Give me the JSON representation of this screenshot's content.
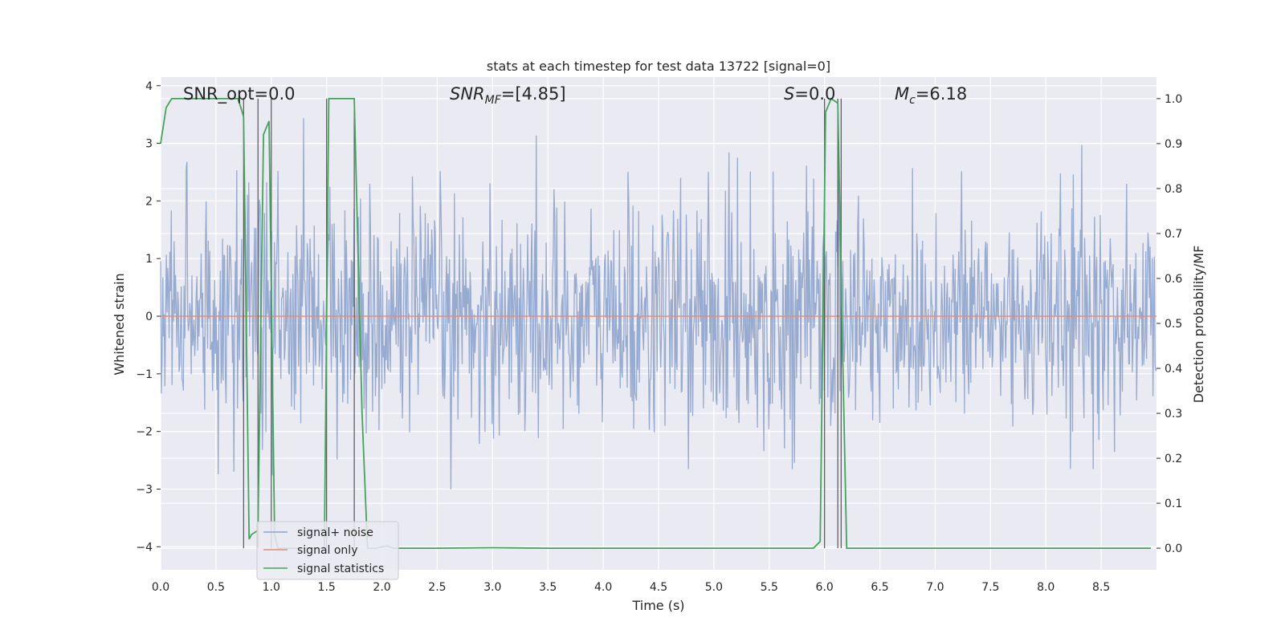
{
  "chart_data": {
    "type": "line",
    "title": "stats at each timestep for test data 13722 [signal=0]",
    "xlabel": "Time (s)",
    "ylabel": "Whitened strain",
    "ylabel_right": "Detection probability/MF",
    "xlim": [
      0.0,
      9.0
    ],
    "ylim": [
      -4.4,
      4.15
    ],
    "ylim_right": [
      -0.048,
      1.048
    ],
    "xticks": [
      "0.0",
      "0.5",
      "1.0",
      "1.5",
      "2.0",
      "2.5",
      "3.0",
      "3.5",
      "4.0",
      "4.5",
      "5.0",
      "5.5",
      "6.0",
      "6.5",
      "7.0",
      "7.5",
      "8.0",
      "8.5"
    ],
    "yticks": [
      "4",
      "3",
      "2",
      "1",
      "0",
      "−1",
      "−2",
      "−3",
      "−4"
    ],
    "yticks_right": [
      "1.0",
      "0.9",
      "0.8",
      "0.7",
      "0.6",
      "0.5",
      "0.4",
      "0.3",
      "0.2",
      "0.1",
      "0.0"
    ],
    "grid": true,
    "legend_position": "lower-left",
    "annotations": {
      "snr_opt": "SNR_opt=0.0",
      "snr_mf": "SNR_MF=[4.85]",
      "s": "S=0.0",
      "mc": "M_c=6.18"
    },
    "series": [
      {
        "name": "signal+ noise",
        "color": "#8ea3cc",
        "kind": "noise",
        "envelope_upper": 1.4,
        "envelope_lower": -1.6,
        "peak_upper": 3.9,
        "peak_lower": -4.0
      },
      {
        "name": "signal only",
        "color": "#e48a73",
        "kind": "constant",
        "value": 0.0
      },
      {
        "name": "signal statistics",
        "color": "#44a35c",
        "kind": "line",
        "axis": "right",
        "x": [
          0.0,
          0.05,
          0.1,
          0.15,
          0.2,
          0.3,
          0.4,
          0.5,
          0.6,
          0.65,
          0.7,
          0.75,
          0.8,
          0.82,
          0.88,
          0.93,
          0.98,
          1.03,
          1.06,
          1.1,
          1.15,
          1.2,
          1.3,
          1.4,
          1.48,
          1.52,
          1.55,
          1.6,
          1.7,
          1.75,
          1.78,
          1.82,
          1.87,
          1.9,
          1.95,
          2.0,
          2.05,
          2.1,
          2.2,
          2.5,
          3.0,
          3.5,
          4.0,
          4.5,
          5.0,
          5.5,
          5.9,
          5.96,
          6.01,
          6.06,
          6.12,
          6.15,
          6.2,
          6.25,
          6.5,
          7.0,
          7.5,
          8.0,
          8.5,
          8.95
        ],
        "y": [
          0.9,
          0.98,
          1.0,
          1.0,
          1.0,
          1.0,
          1.0,
          1.0,
          1.0,
          1.0,
          1.0,
          0.96,
          0.02,
          0.03,
          0.04,
          0.92,
          0.95,
          0.03,
          0.0,
          0.0,
          0.0,
          0.0,
          0.0,
          0.0,
          0.0,
          1.0,
          1.0,
          1.0,
          1.0,
          1.0,
          0.7,
          0.3,
          0.0,
          0.0,
          0.0,
          0.003,
          0.005,
          0.0,
          0.0,
          0.0,
          0.001,
          0.0,
          0.0,
          0.0,
          0.0,
          0.0,
          0.0,
          0.015,
          0.97,
          1.0,
          0.99,
          0.6,
          0.0,
          0.0,
          0.0,
          0.0,
          0.0,
          0.0,
          0.0,
          0.0
        ]
      }
    ],
    "vertical_lines_x": [
      0.75,
      0.88,
      1.0,
      1.5,
      1.75,
      6.0,
      6.12,
      6.15
    ]
  }
}
